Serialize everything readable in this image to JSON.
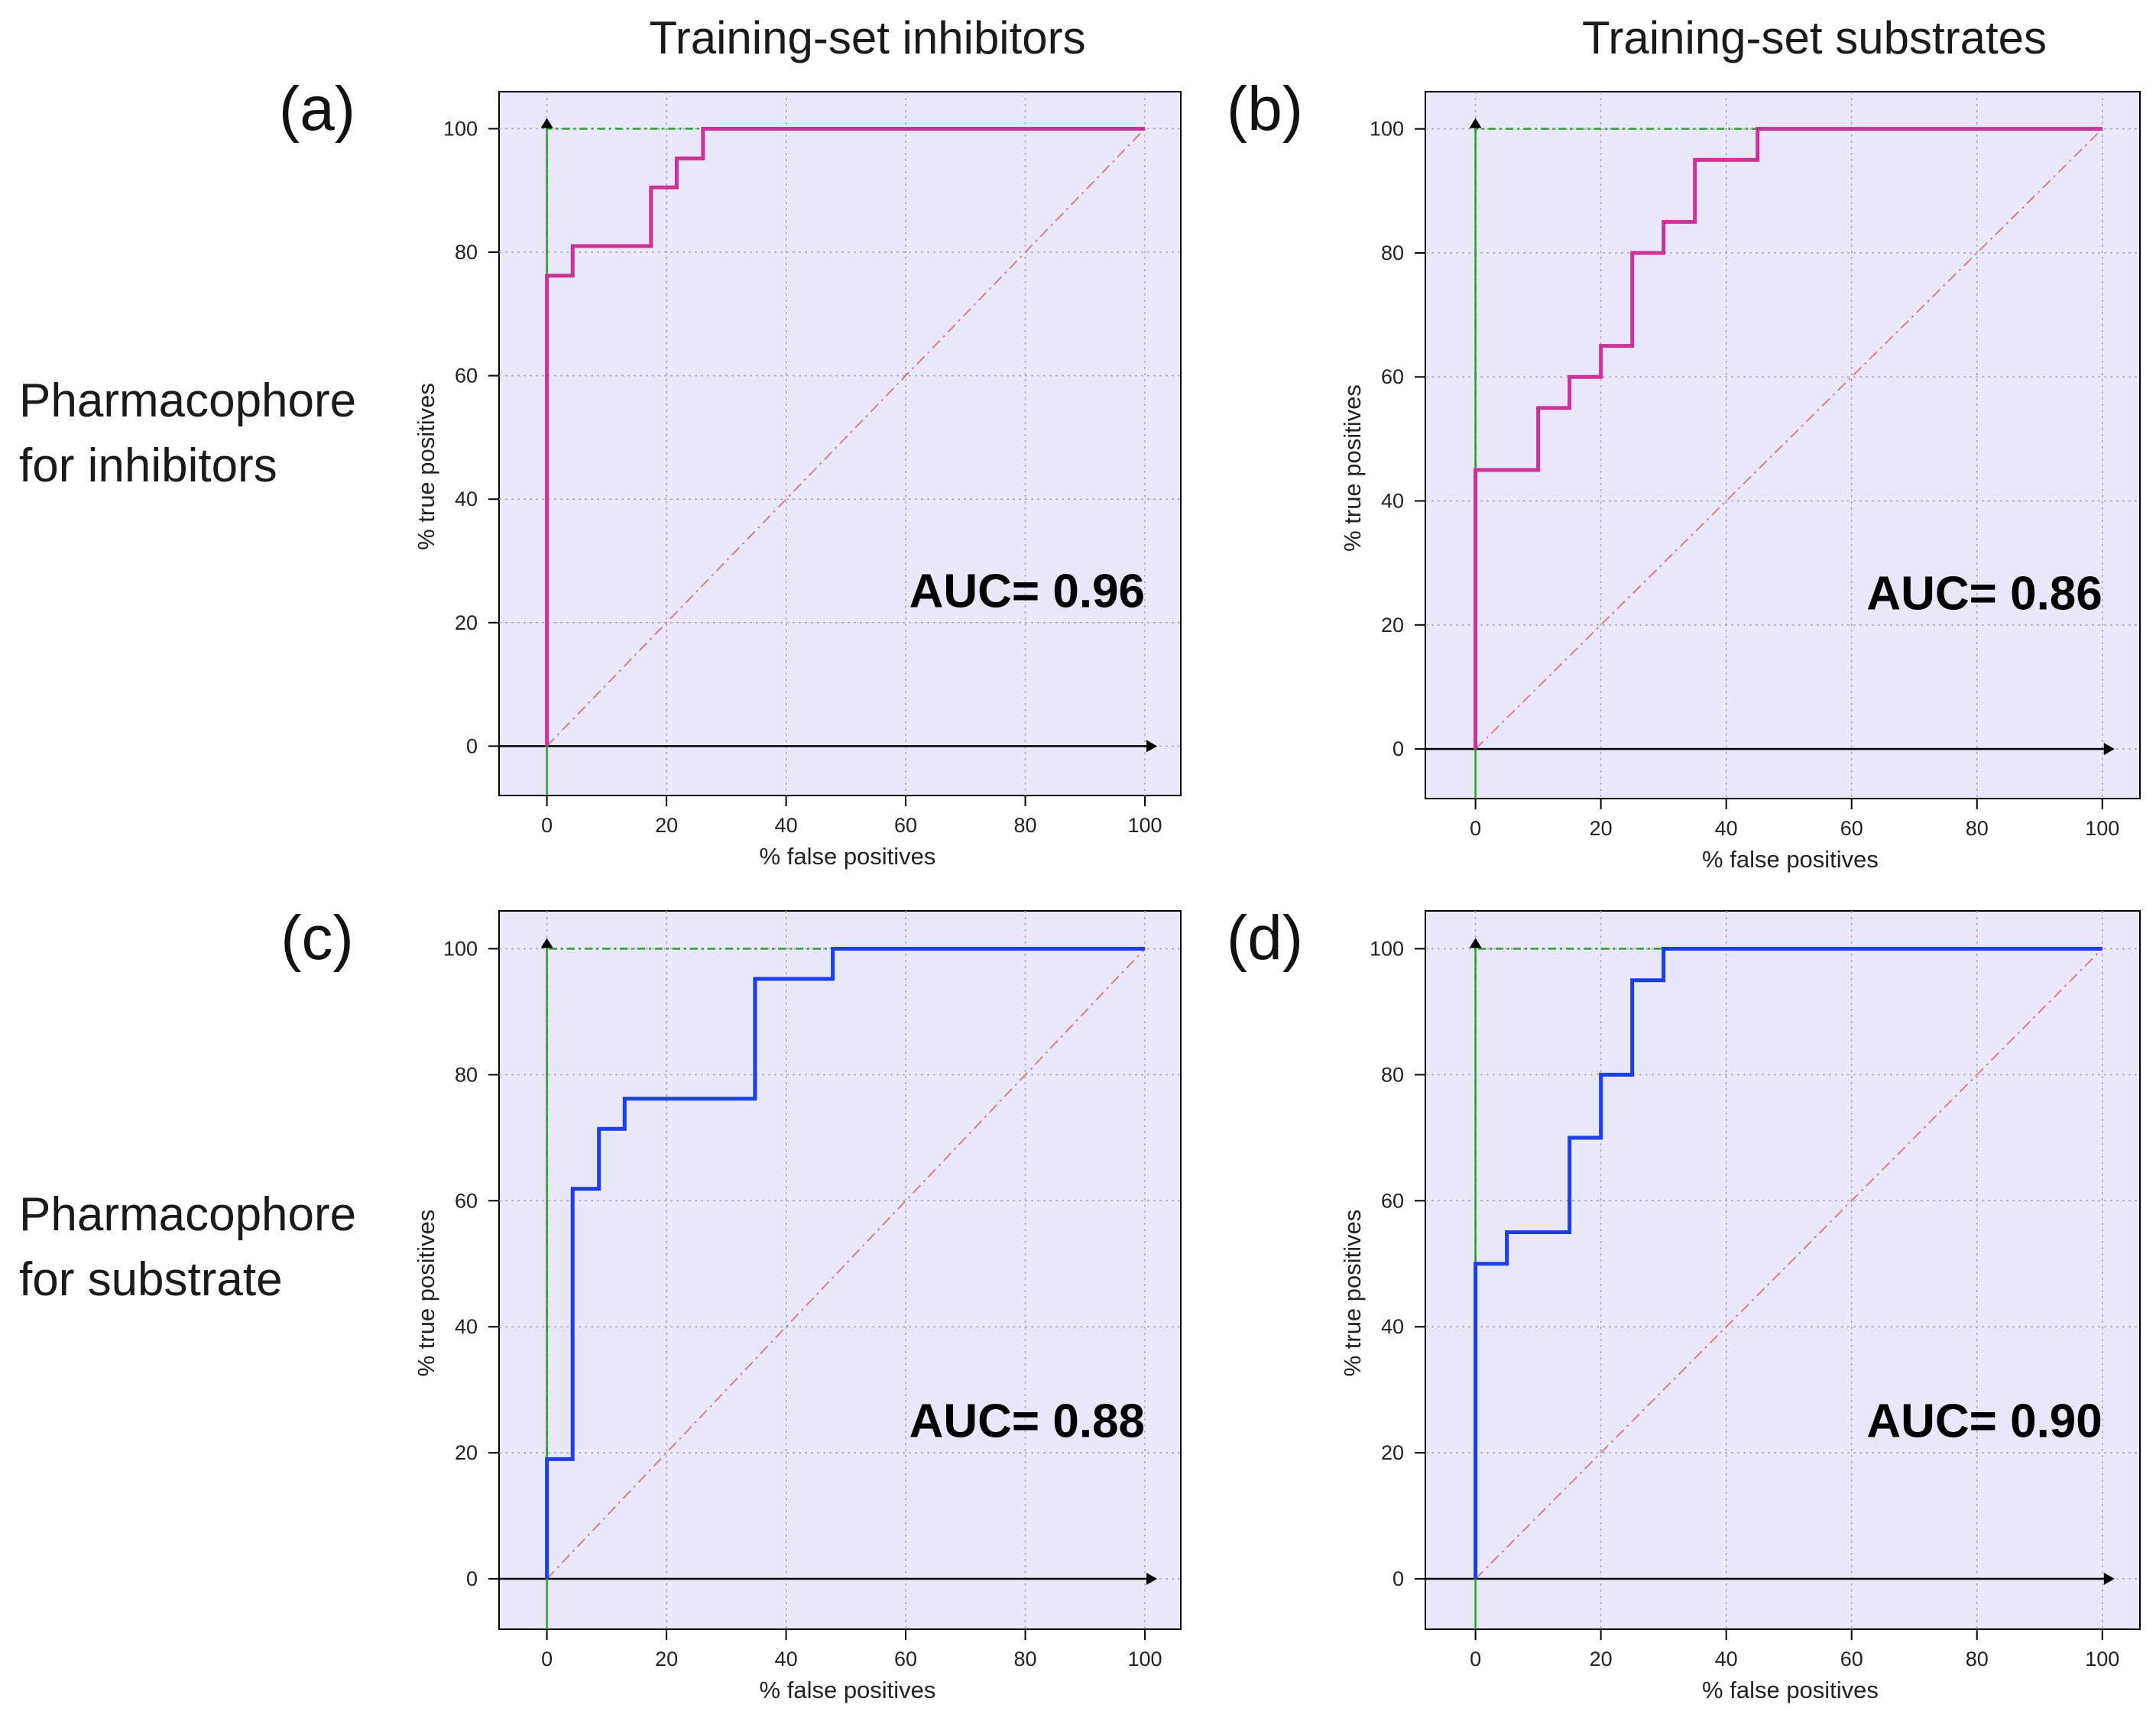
{
  "column_titles": [
    "Training-set inhibitors",
    "Training-set substrates"
  ],
  "row_labels": [
    [
      "Pharmacophore",
      "for inhibitors"
    ],
    [
      "Pharmacophore",
      "for substrate"
    ]
  ],
  "colors": {
    "panel_background": "#e8e8fa",
    "grid": "#a8a8b4",
    "diagonal": "#e08080",
    "ideal": "#2ea02e",
    "inhibitor_curve": "#cc3399",
    "substrate_curve": "#1f3fe6",
    "axis": "#000000"
  },
  "chart_data": [
    {
      "type": "line",
      "panel": "(a)",
      "column": "Training-set inhibitors",
      "row": "Pharmacophore for inhibitors",
      "xlabel": "% false positives",
      "ylabel": "% true positives",
      "xlim": [
        -8,
        106
      ],
      "ylim": [
        -8,
        106
      ],
      "xticks": [
        0,
        20,
        40,
        60,
        80,
        100
      ],
      "yticks": [
        0,
        20,
        40,
        60,
        80,
        100
      ],
      "grid": true,
      "auc_text": "AUC= 0.96",
      "curve_color": "inhibitor_curve",
      "series": [
        {
          "name": "ROC",
          "x": [
            0,
            0,
            4.3,
            4.3,
            17.4,
            17.4,
            21.7,
            21.7,
            26.1,
            26.1,
            100
          ],
          "y": [
            0,
            76.2,
            76.2,
            81,
            81,
            90.5,
            90.5,
            95.2,
            95.2,
            100,
            100
          ]
        },
        {
          "name": "random",
          "x": [
            0,
            100
          ],
          "y": [
            0,
            100
          ]
        },
        {
          "name": "ideal",
          "x": [
            0,
            0,
            100
          ],
          "y": [
            0,
            100,
            100
          ]
        }
      ]
    },
    {
      "type": "line",
      "panel": "(b)",
      "column": "Training-set substrates",
      "row": "Pharmacophore for inhibitors",
      "xlabel": "% false positives",
      "ylabel": "% true positives",
      "xlim": [
        -8,
        106
      ],
      "ylim": [
        -8,
        106
      ],
      "xticks": [
        0,
        20,
        40,
        60,
        80,
        100
      ],
      "yticks": [
        0,
        20,
        40,
        60,
        80,
        100
      ],
      "grid": true,
      "auc_text": "AUC= 0.86",
      "curve_color": "inhibitor_curve",
      "series": [
        {
          "name": "ROC",
          "x": [
            0,
            0,
            10,
            10,
            15,
            15,
            20,
            20,
            25,
            25,
            30,
            30,
            35,
            35,
            45,
            45,
            100
          ],
          "y": [
            0,
            45,
            45,
            55,
            55,
            60,
            60,
            65,
            65,
            80,
            80,
            85,
            85,
            95,
            95,
            100,
            100
          ]
        },
        {
          "name": "random",
          "x": [
            0,
            100
          ],
          "y": [
            0,
            100
          ]
        },
        {
          "name": "ideal",
          "x": [
            0,
            0,
            100
          ],
          "y": [
            0,
            100,
            100
          ]
        }
      ]
    },
    {
      "type": "line",
      "panel": "(c)",
      "column": "Training-set inhibitors",
      "row": "Pharmacophore for substrate",
      "xlabel": "% false positives",
      "ylabel": "% true positives",
      "xlim": [
        -8,
        106
      ],
      "ylim": [
        -8,
        106
      ],
      "xticks": [
        0,
        20,
        40,
        60,
        80,
        100
      ],
      "yticks": [
        0,
        20,
        40,
        60,
        80,
        100
      ],
      "grid": true,
      "auc_text": "AUC= 0.88",
      "curve_color": "substrate_curve",
      "series": [
        {
          "name": "ROC",
          "x": [
            0,
            0,
            4.3,
            4.3,
            8.7,
            8.7,
            13,
            13,
            34.8,
            34.8,
            47.8,
            47.8,
            100
          ],
          "y": [
            0,
            19,
            19,
            61.9,
            61.9,
            71.4,
            71.4,
            76.2,
            76.2,
            95.2,
            95.2,
            100,
            100
          ]
        },
        {
          "name": "random",
          "x": [
            0,
            100
          ],
          "y": [
            0,
            100
          ]
        },
        {
          "name": "ideal",
          "x": [
            0,
            0,
            100
          ],
          "y": [
            0,
            100,
            100
          ]
        }
      ]
    },
    {
      "type": "line",
      "panel": "(d)",
      "column": "Training-set substrates",
      "row": "Pharmacophore for substrate",
      "xlabel": "% false positives",
      "ylabel": "% true positives",
      "xlim": [
        -8,
        106
      ],
      "ylim": [
        -8,
        106
      ],
      "xticks": [
        0,
        20,
        40,
        60,
        80,
        100
      ],
      "yticks": [
        0,
        20,
        40,
        60,
        80,
        100
      ],
      "grid": true,
      "auc_text": "AUC= 0.90",
      "curve_color": "substrate_curve",
      "series": [
        {
          "name": "ROC",
          "x": [
            0,
            0,
            5,
            5,
            15,
            15,
            20,
            20,
            25,
            25,
            30,
            30,
            100
          ],
          "y": [
            0,
            50,
            50,
            55,
            55,
            70,
            70,
            80,
            80,
            95,
            95,
            100,
            100
          ]
        },
        {
          "name": "random",
          "x": [
            0,
            100
          ],
          "y": [
            0,
            100
          ]
        },
        {
          "name": "ideal",
          "x": [
            0,
            0,
            100
          ],
          "y": [
            0,
            100,
            100
          ]
        }
      ]
    }
  ]
}
